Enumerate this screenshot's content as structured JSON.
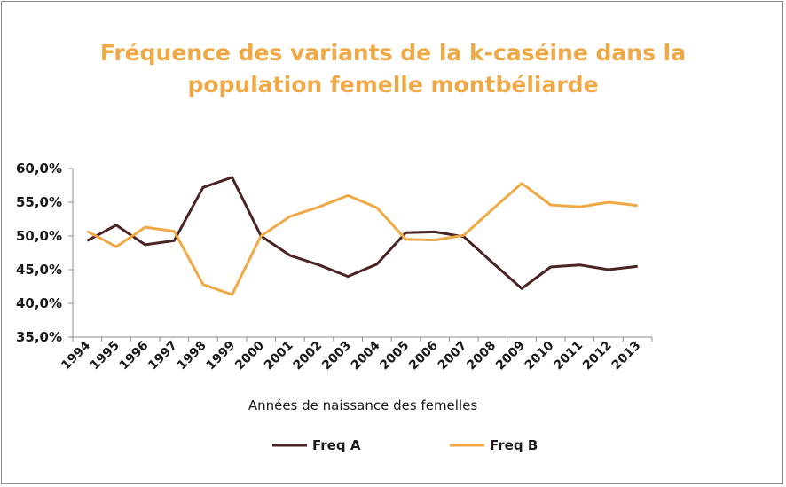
{
  "chart_data": {
    "type": "line",
    "title_line1": "Fréquence des variants de la k-caséine dans la",
    "title_line2": "population femelle montbéliarde",
    "xlabel": "Années de naissance des femelles",
    "ylabel": "",
    "categories": [
      "1994",
      "1995",
      "1996",
      "1997",
      "1998",
      "1999",
      "2000",
      "2001",
      "2002",
      "2003",
      "2004",
      "2005",
      "2006",
      "2007",
      "2008",
      "2009",
      "2010",
      "2011",
      "2012",
      "2013"
    ],
    "ylim": [
      0.35,
      0.6
    ],
    "yticks": [
      "35,0%",
      "40,0%",
      "45,0%",
      "50,0%",
      "55,0%",
      "60,0%"
    ],
    "grid": false,
    "legend_position": "bottom",
    "series": [
      {
        "name": "Freq A",
        "color": "#4a2323",
        "values": [
          0.493,
          0.516,
          0.487,
          0.493,
          0.572,
          0.587,
          0.5,
          0.471,
          0.457,
          0.44,
          0.458,
          0.505,
          0.506,
          0.499,
          0.46,
          0.422,
          0.454,
          0.457,
          0.45,
          0.455
        ]
      },
      {
        "name": "Freq B",
        "color": "#f0a844",
        "values": [
          0.507,
          0.484,
          0.513,
          0.507,
          0.428,
          0.413,
          0.5,
          0.529,
          0.543,
          0.56,
          0.542,
          0.495,
          0.494,
          0.501,
          0.54,
          0.578,
          0.546,
          0.543,
          0.55,
          0.545
        ]
      }
    ]
  }
}
